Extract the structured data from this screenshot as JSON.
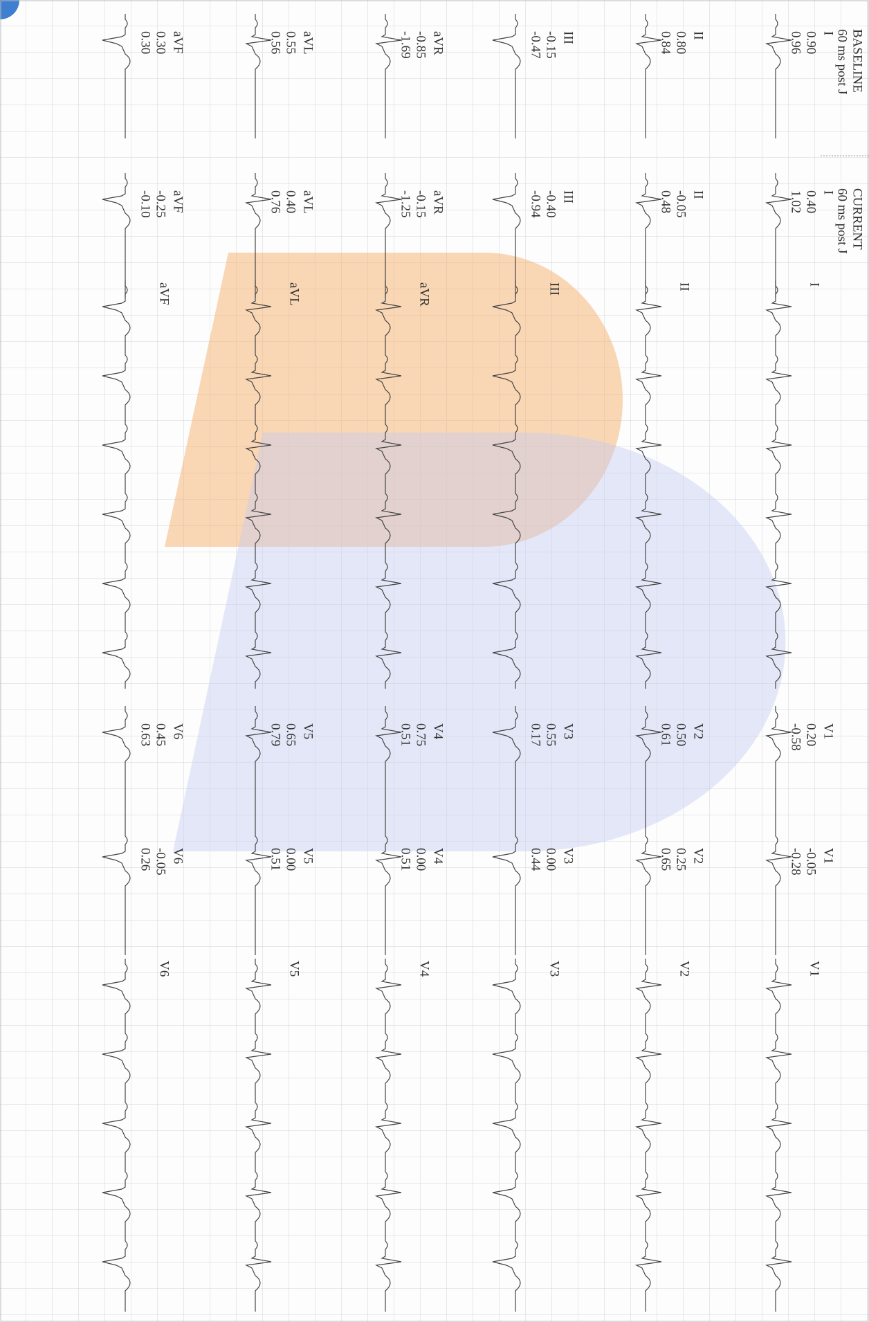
{
  "header": {
    "baseline": {
      "title": "BASELINE",
      "subtitle": "60 ms post J"
    },
    "current": {
      "title": "CURRENT",
      "subtitle": "60 ms post J"
    }
  },
  "limb_leads": [
    {
      "baseline": {
        "label": "I",
        "values": [
          "0.90",
          "0.96"
        ]
      },
      "current": {
        "label": "I",
        "values": [
          "0.40",
          "1.02"
        ]
      },
      "strip_label": "I"
    },
    {
      "baseline": {
        "label": "II",
        "values": [
          "0.80",
          "0.84"
        ]
      },
      "current": {
        "label": "II",
        "values": [
          "-0.05",
          "0.48"
        ]
      },
      "strip_label": "II"
    },
    {
      "baseline": {
        "label": "III",
        "values": [
          "-0.15",
          "-0.47"
        ]
      },
      "current": {
        "label": "III",
        "values": [
          "-0.40",
          "-0.94"
        ]
      },
      "strip_label": "III"
    },
    {
      "baseline": {
        "label": "aVR",
        "values": [
          "-0.85",
          "-1.69"
        ]
      },
      "current": {
        "label": "aVR",
        "values": [
          "-0.15",
          "-1.25"
        ]
      },
      "strip_label": "aVR"
    },
    {
      "baseline": {
        "label": "aVL",
        "values": [
          "0.55",
          "0.56"
        ]
      },
      "current": {
        "label": "aVL",
        "values": [
          "0.40",
          "0.76"
        ]
      },
      "strip_label": "aVL"
    },
    {
      "baseline": {
        "label": "aVF",
        "values": [
          "0.30",
          "0.30"
        ]
      },
      "current": {
        "label": "aVF",
        "values": [
          "-0.25",
          "-0.10"
        ]
      },
      "strip_label": "aVF"
    }
  ],
  "chest_leads": [
    {
      "baseline": {
        "label": "V1",
        "values": [
          "0.20",
          "-0.58"
        ]
      },
      "current": {
        "label": "V1",
        "values": [
          "-0.05",
          "-0.28"
        ]
      },
      "strip_label": "V1"
    },
    {
      "baseline": {
        "label": "V2",
        "values": [
          "0.50",
          "0.61"
        ]
      },
      "current": {
        "label": "V2",
        "values": [
          "0.25",
          "0.65"
        ]
      },
      "strip_label": "V2"
    },
    {
      "baseline": {
        "label": "V3",
        "values": [
          "0.55",
          "0.17"
        ]
      },
      "current": {
        "label": "V3",
        "values": [
          "0.00",
          "0.44"
        ]
      },
      "strip_label": "V3"
    },
    {
      "baseline": {
        "label": "V4",
        "values": [
          "0.75",
          "0.51"
        ]
      },
      "current": {
        "label": "V4",
        "values": [
          "0.00",
          "0.51"
        ]
      },
      "strip_label": "V4"
    },
    {
      "baseline": {
        "label": "V5",
        "values": [
          "0.65",
          "0.79"
        ]
      },
      "current": {
        "label": "V5",
        "values": [
          "0.00",
          "0.51"
        ]
      },
      "strip_label": "V5"
    },
    {
      "baseline": {
        "label": "V6",
        "values": [
          "0.45",
          "0.63"
        ]
      },
      "current": {
        "label": "V6",
        "values": [
          "-0.05",
          "0.26"
        ]
      },
      "strip_label": "V6"
    }
  ]
}
